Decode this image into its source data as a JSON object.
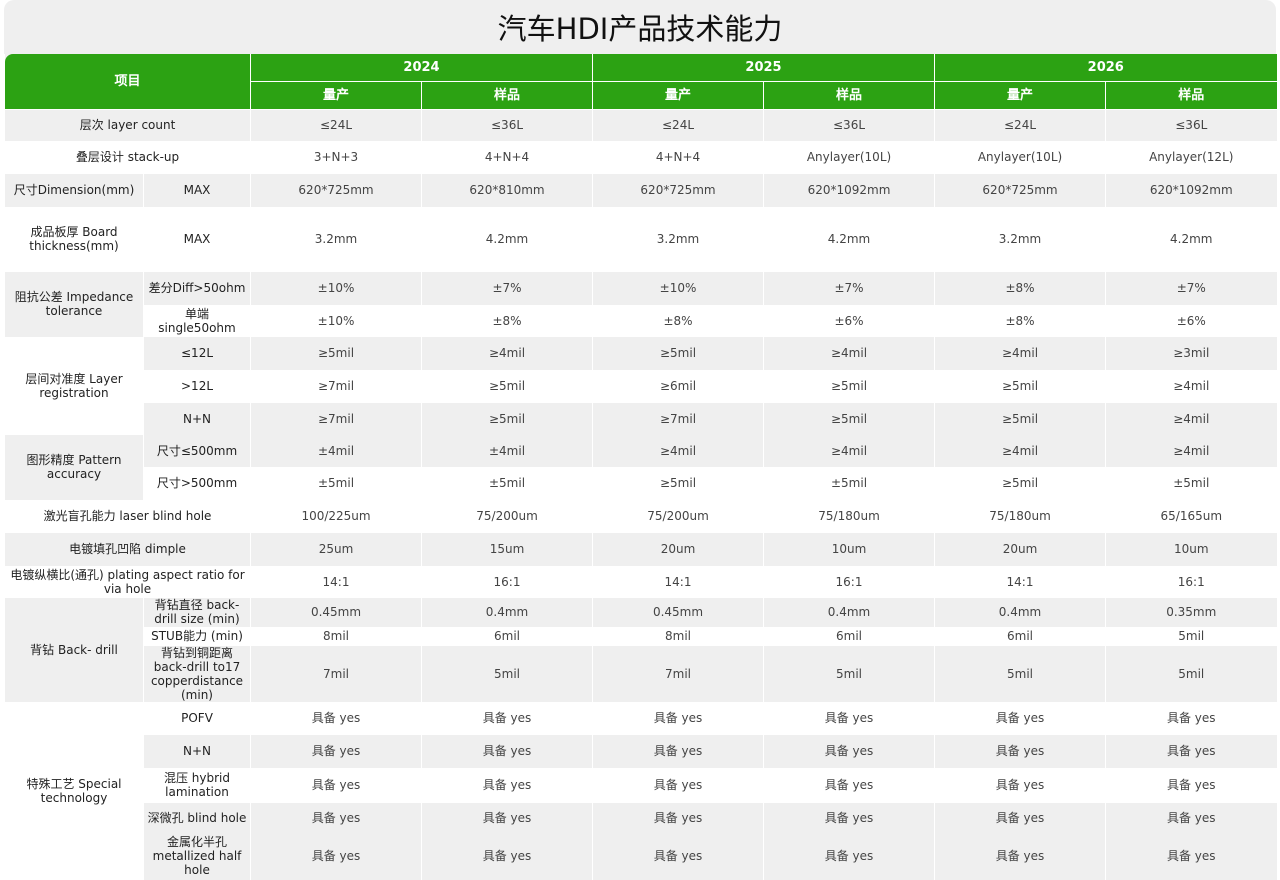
{
  "title": "汽车HDI产品技术能力",
  "header": {
    "item_label": "项目",
    "years": [
      "2024",
      "2025",
      "2026"
    ],
    "sub": [
      "量产",
      "样品"
    ]
  },
  "rows": [
    {
      "label": "层次  layer count",
      "values": [
        "≤24L",
        "≤36L",
        "≤24L",
        "≤36L",
        "≤24L",
        "≤36L"
      ]
    },
    {
      "label": "叠层设计 stack-up",
      "values": [
        "3+N+3",
        "4+N+4",
        "4+N+4",
        "Anylayer(10L)",
        "Anylayer(10L)",
        "Anylayer(12L)"
      ]
    },
    {
      "group": "尺寸Dimension(mm)",
      "items": [
        {
          "label": "MAX",
          "values": [
            "620*725mm",
            "620*810mm",
            "620*725mm",
            "620*1092mm",
            "620*725mm",
            "620*1092mm"
          ]
        }
      ]
    },
    {
      "group": "成品板厚 Board thickness(mm)",
      "items": [
        {
          "label": "MAX",
          "values": [
            "3.2mm",
            "4.2mm",
            "3.2mm",
            "4.2mm",
            "3.2mm",
            "4.2mm"
          ]
        }
      ]
    },
    {
      "group": "阻抗公差 Impedance tolerance",
      "items": [
        {
          "label": "差分Diff>50ohm",
          "values": [
            "±10%",
            "±7%",
            "±10%",
            "±7%",
            "±8%",
            "±7%"
          ]
        },
        {
          "label": "单端 single50ohm",
          "values": [
            "±10%",
            "±8%",
            "±8%",
            "±6%",
            "±8%",
            "±6%"
          ]
        }
      ]
    },
    {
      "group": "层间对准度 Layer registration",
      "items": [
        {
          "label": "≤12L",
          "values": [
            "≥5mil",
            "≥4mil",
            "≥5mil",
            "≥4mil",
            "≥4mil",
            "≥3mil"
          ]
        },
        {
          "label": ">12L",
          "values": [
            "≥7mil",
            "≥5mil",
            "≥6mil",
            "≥5mil",
            "≥5mil",
            "≥4mil"
          ]
        },
        {
          "label": "N+N",
          "values": [
            "≥7mil",
            "≥5mil",
            "≥7mil",
            "≥5mil",
            "≥5mil",
            "≥4mil"
          ]
        }
      ]
    },
    {
      "group": "图形精度 Pattern accuracy",
      "items": [
        {
          "label": "尺寸≤500mm",
          "values": [
            "±4mil",
            "±4mil",
            "≥4mil",
            "≥4mil",
            "≥4mil",
            "≥4mil"
          ]
        },
        {
          "label": "尺寸>500mm",
          "values": [
            "±5mil",
            "±5mil",
            "≥5mil",
            "±5mil",
            "≥5mil",
            "±5mil"
          ]
        }
      ]
    },
    {
      "label": "激光盲孔能力 laser blind hole",
      "values": [
        "100/225um",
        "75/200um",
        "75/200um",
        "75/180um",
        "75/180um",
        "65/165um"
      ]
    },
    {
      "label": "电镀填孔凹陷 dimple",
      "values": [
        "25um",
        "15um",
        "20um",
        "10um",
        "20um",
        "10um"
      ]
    },
    {
      "label": "电镀纵横比(通孔) plating aspect ratio for via hole",
      "values": [
        "14:1",
        "16:1",
        "14:1",
        "16:1",
        "14:1",
        "16:1"
      ]
    },
    {
      "group": "背钻 Back- drill",
      "items": [
        {
          "label": "背钻直径 back-drill size (min)",
          "values": [
            "0.45mm",
            "0.4mm",
            "0.45mm",
            "0.4mm",
            "0.4mm",
            "0.35mm"
          ]
        },
        {
          "label": "STUB能力 (min)",
          "values": [
            "8mil",
            "6mil",
            "8mil",
            "6mil",
            "6mil",
            "5mil"
          ]
        },
        {
          "label": "背钻到铜距离 back-drill to17 copperdistance (min)",
          "values": [
            "7mil",
            "5mil",
            "7mil",
            "5mil",
            "5mil",
            "5mil"
          ]
        }
      ]
    },
    {
      "group": "特殊工艺 Special  technology",
      "items": [
        {
          "label": "POFV",
          "values": [
            "具备 yes",
            "具备 yes",
            "具备 yes",
            "具备 yes",
            "具备 yes",
            "具备 yes"
          ]
        },
        {
          "label": "N+N",
          "values": [
            "具备 yes",
            "具备 yes",
            "具备 yes",
            "具备 yes",
            "具备 yes",
            "具备 yes"
          ]
        },
        {
          "label": "混压 hybrid lamination",
          "values": [
            "具备 yes",
            "具备 yes",
            "具备 yes",
            "具备 yes",
            "具备 yes",
            "具备 yes"
          ]
        },
        {
          "label": "深微孔 blind hole",
          "values": [
            "具备 yes",
            "具备 yes",
            "具备 yes",
            "具备 yes",
            "具备 yes",
            "具备 yes"
          ]
        },
        {
          "label": "金属化半孔 metallized half hole",
          "values": [
            "具备 yes",
            "具备 yes",
            "具备 yes",
            "具备 yes",
            "具备 yes",
            "具备 yes"
          ]
        }
      ]
    }
  ],
  "colors": {
    "header_green": "#2ca213",
    "row_gray": "#efefef"
  }
}
